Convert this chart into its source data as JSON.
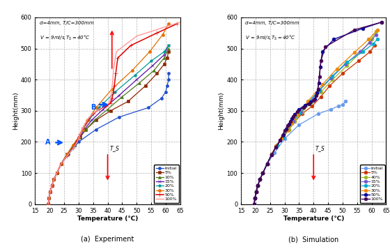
{
  "title_a": "(a)  Experiment",
  "title_b": "(b)  Simulation",
  "xlabel": "Temperature (℃)",
  "ylabel": "Height(mm)",
  "xlim": [
    15,
    65
  ],
  "ylim": [
    0,
    600
  ],
  "xticks": [
    15,
    20,
    25,
    30,
    35,
    40,
    45,
    50,
    55,
    60,
    65
  ],
  "yticks": [
    0,
    100,
    200,
    300,
    400,
    500,
    600
  ],
  "exp_series": [
    {
      "label": "Initial",
      "color": "#1F4FCC",
      "marker": "o",
      "lw": 0.9,
      "ms": 3,
      "T": [
        19.5,
        19.8,
        20.2,
        20.8,
        21.5,
        22.5,
        24.0,
        26.5,
        30.0,
        36.0,
        44.0,
        54.0,
        58.5,
        60.0,
        60.5,
        61.0,
        61.0
      ],
      "H": [
        0,
        20,
        40,
        60,
        80,
        100,
        130,
        160,
        200,
        240,
        280,
        310,
        340,
        360,
        380,
        400,
        420
      ]
    },
    {
      "label": "5%",
      "color": "#8B2500",
      "marker": "s",
      "lw": 0.9,
      "ms": 3,
      "T": [
        19.5,
        19.8,
        20.2,
        20.8,
        21.5,
        22.5,
        24.0,
        26.0,
        28.5,
        30.5,
        32.5,
        36.0,
        41.0,
        47.0,
        53.0,
        57.0,
        59.5,
        60.5,
        61.0
      ],
      "H": [
        0,
        20,
        40,
        60,
        80,
        100,
        130,
        160,
        190,
        215,
        240,
        270,
        300,
        330,
        380,
        420,
        450,
        470,
        490
      ]
    },
    {
      "label": "10%",
      "color": "#4E7A1E",
      "marker": "^",
      "lw": 0.9,
      "ms": 3,
      "T": [
        19.5,
        19.8,
        20.2,
        20.8,
        21.5,
        22.5,
        24.0,
        26.0,
        28.5,
        30.5,
        32.5,
        35.5,
        40.0,
        45.0,
        51.0,
        56.0,
        59.5,
        61.0
      ],
      "H": [
        0,
        20,
        40,
        60,
        80,
        100,
        130,
        160,
        190,
        215,
        240,
        270,
        305,
        345,
        390,
        430,
        470,
        500
      ]
    },
    {
      "label": "15%",
      "color": "#5B0EA6",
      "marker": "x",
      "lw": 0.9,
      "ms": 3.5,
      "T": [
        19.5,
        19.8,
        20.2,
        20.8,
        21.5,
        22.5,
        24.0,
        26.0,
        28.5,
        30.5,
        32.0,
        34.5,
        38.5,
        44.0,
        50.0,
        55.5,
        59.5,
        61.0
      ],
      "H": [
        0,
        20,
        40,
        60,
        80,
        100,
        130,
        160,
        190,
        215,
        240,
        270,
        305,
        350,
        400,
        445,
        480,
        510
      ]
    },
    {
      "label": "20%",
      "color": "#009999",
      "marker": "p",
      "lw": 0.9,
      "ms": 3,
      "T": [
        19.5,
        19.8,
        20.2,
        20.8,
        21.5,
        22.5,
        24.0,
        26.0,
        28.5,
        30.0,
        31.5,
        33.5,
        37.0,
        42.5,
        49.5,
        55.0,
        59.5,
        61.0
      ],
      "H": [
        0,
        20,
        40,
        60,
        80,
        100,
        130,
        160,
        190,
        215,
        240,
        270,
        310,
        360,
        415,
        460,
        490,
        510
      ]
    },
    {
      "label": "30%",
      "color": "#E07000",
      "marker": "o",
      "lw": 0.9,
      "ms": 3,
      "T": [
        19.5,
        19.8,
        20.2,
        20.8,
        21.5,
        22.5,
        24.0,
        26.0,
        28.0,
        30.0,
        31.5,
        33.0,
        36.0,
        41.5,
        48.5,
        54.5,
        59.0,
        61.0
      ],
      "H": [
        0,
        20,
        40,
        60,
        80,
        100,
        130,
        160,
        190,
        215,
        240,
        268,
        310,
        370,
        430,
        490,
        545,
        580
      ]
    },
    {
      "label": "50%",
      "color": "#DD0000",
      "marker": "+",
      "lw": 1.1,
      "ms": 4,
      "T": [
        19.5,
        19.8,
        20.2,
        20.8,
        21.5,
        22.5,
        24.0,
        26.0,
        28.0,
        29.5,
        30.5,
        31.5,
        32.5,
        33.5,
        35.0,
        37.0,
        39.5,
        41.0,
        41.5,
        42.0,
        42.3,
        42.8,
        43.5,
        48.0,
        57.0,
        64.0
      ],
      "H": [
        0,
        20,
        40,
        60,
        80,
        100,
        130,
        155,
        180,
        205,
        225,
        245,
        260,
        275,
        290,
        305,
        315,
        325,
        340,
        360,
        380,
        420,
        470,
        510,
        550,
        580
      ]
    },
    {
      "label": "100%",
      "color": "#FF9999",
      "marker": "",
      "lw": 1.0,
      "ms": 0,
      "T": [
        19.5,
        19.8,
        20.2,
        20.8,
        21.5,
        22.5,
        24.0,
        26.0,
        28.0,
        29.5,
        30.2,
        31.0,
        31.8,
        32.5,
        33.5,
        35.0,
        37.0,
        39.0,
        40.5,
        41.0,
        41.3,
        41.7,
        42.0,
        43.0,
        50.0,
        60.0,
        65.0
      ],
      "H": [
        0,
        20,
        40,
        60,
        80,
        100,
        130,
        155,
        178,
        200,
        218,
        235,
        250,
        263,
        277,
        292,
        305,
        316,
        325,
        340,
        360,
        390,
        430,
        490,
        540,
        570,
        585
      ]
    }
  ],
  "sim_series": [
    {
      "label": "Initial",
      "color": "#6699EE",
      "marker": "o",
      "lw": 0.9,
      "ms": 3.5,
      "T": [
        19.5,
        19.8,
        20.2,
        20.8,
        21.5,
        22.5,
        24.0,
        26.5,
        30.0,
        35.0,
        41.5,
        46.0,
        48.5,
        50.0,
        51.0
      ],
      "H": [
        0,
        20,
        40,
        60,
        80,
        100,
        130,
        165,
        210,
        255,
        290,
        305,
        315,
        320,
        330
      ]
    },
    {
      "label": "5%",
      "color": "#CC3300",
      "marker": "o",
      "lw": 0.9,
      "ms": 3.5,
      "T": [
        19.5,
        19.8,
        20.2,
        20.8,
        21.5,
        22.5,
        24.0,
        25.5,
        27.5,
        29.5,
        31.5,
        33.5,
        36.0,
        39.5,
        42.5,
        45.5,
        50.0,
        55.5,
        59.5,
        61.0
      ],
      "H": [
        0,
        20,
        40,
        60,
        80,
        100,
        130,
        160,
        190,
        215,
        240,
        265,
        290,
        315,
        345,
        380,
        420,
        460,
        490,
        510
      ]
    },
    {
      "label": "40%",
      "color": "#99BB22",
      "marker": "o",
      "lw": 0.9,
      "ms": 3.5,
      "T": [
        19.5,
        19.8,
        20.2,
        20.8,
        21.5,
        22.5,
        24.0,
        25.5,
        27.5,
        29.5,
        31.5,
        33.5,
        36.0,
        39.0,
        42.5,
        46.5,
        51.5,
        56.5,
        60.0,
        61.5
      ],
      "H": [
        0,
        20,
        40,
        60,
        80,
        100,
        130,
        160,
        190,
        215,
        240,
        265,
        295,
        325,
        360,
        400,
        445,
        490,
        530,
        555
      ]
    },
    {
      "label": "15%",
      "color": "#7755CC",
      "marker": "o",
      "lw": 0.9,
      "ms": 3.5,
      "T": [
        19.5,
        19.8,
        20.2,
        20.8,
        21.5,
        22.5,
        24.0,
        25.5,
        27.5,
        29.5,
        31.0,
        33.0,
        35.5,
        38.5,
        42.0,
        46.0,
        51.0,
        56.0,
        59.5,
        61.5
      ],
      "H": [
        0,
        20,
        40,
        60,
        80,
        100,
        130,
        160,
        190,
        215,
        240,
        265,
        295,
        325,
        365,
        405,
        450,
        490,
        520,
        545
      ]
    },
    {
      "label": "20%",
      "color": "#00AACC",
      "marker": "o",
      "lw": 0.9,
      "ms": 3.5,
      "T": [
        19.5,
        19.8,
        20.2,
        20.8,
        21.5,
        22.5,
        24.0,
        25.5,
        27.5,
        29.5,
        31.0,
        32.5,
        35.0,
        38.0,
        42.0,
        46.5,
        51.5,
        57.0,
        60.5,
        62.0
      ],
      "H": [
        0,
        20,
        40,
        60,
        80,
        100,
        130,
        160,
        190,
        215,
        240,
        262,
        290,
        325,
        367,
        412,
        456,
        490,
        515,
        530
      ]
    },
    {
      "label": "30%",
      "color": "#EE8800",
      "marker": "o",
      "lw": 0.9,
      "ms": 3.5,
      "T": [
        19.5,
        19.8,
        20.2,
        20.8,
        21.5,
        22.5,
        24.0,
        25.5,
        27.0,
        29.0,
        31.0,
        32.5,
        34.5,
        38.0,
        43.0,
        48.0,
        54.0,
        59.0,
        62.0
      ],
      "H": [
        0,
        20,
        40,
        60,
        80,
        100,
        130,
        160,
        188,
        213,
        238,
        260,
        289,
        330,
        384,
        435,
        487,
        530,
        560
      ]
    },
    {
      "label": "50%",
      "color": "#000099",
      "marker": "o",
      "lw": 1.0,
      "ms": 3.5,
      "T": [
        19.5,
        19.8,
        20.2,
        20.8,
        21.5,
        22.5,
        24.0,
        25.5,
        27.0,
        28.5,
        29.5,
        30.5,
        31.5,
        32.5,
        33.5,
        35.0,
        37.0,
        39.0,
        40.5,
        41.2,
        41.8,
        42.3,
        43.0,
        47.0,
        57.0,
        63.5
      ],
      "H": [
        0,
        20,
        40,
        60,
        80,
        100,
        130,
        158,
        183,
        205,
        224,
        242,
        258,
        274,
        289,
        305,
        318,
        328,
        338,
        358,
        390,
        440,
        490,
        530,
        565,
        585
      ]
    },
    {
      "label": "100%",
      "color": "#440055",
      "marker": "o",
      "lw": 1.0,
      "ms": 3.5,
      "T": [
        19.5,
        19.8,
        20.2,
        20.8,
        21.5,
        22.5,
        24.0,
        25.5,
        27.0,
        28.5,
        29.3,
        30.1,
        31.0,
        32.0,
        33.0,
        34.5,
        36.5,
        38.5,
        40.0,
        41.0,
        41.5,
        42.0,
        42.5,
        44.0,
        54.0,
        63.5
      ],
      "H": [
        0,
        20,
        40,
        60,
        80,
        100,
        130,
        158,
        183,
        205,
        222,
        238,
        252,
        267,
        281,
        297,
        312,
        323,
        333,
        348,
        370,
        410,
        460,
        505,
        560,
        585
      ]
    }
  ]
}
